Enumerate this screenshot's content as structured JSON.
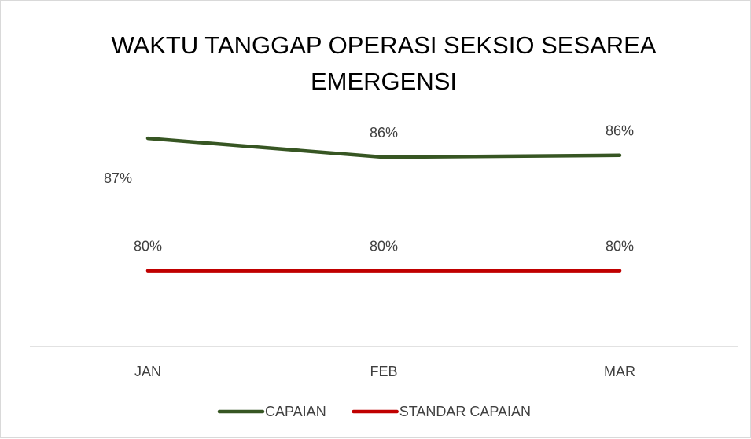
{
  "chart_data": {
    "type": "line",
    "title": "WAKTU TANGGAP OPERASI SEKSIO SESAREA EMERGENSI",
    "categories": [
      "JAN",
      "FEB",
      "MAR"
    ],
    "series": [
      {
        "name": "CAPAIAN",
        "color": "#375623",
        "values": [
          87,
          86,
          86.1
        ],
        "value_labels": [
          "87%",
          "86%",
          "86%"
        ]
      },
      {
        "name": "STANDAR CAPAIAN",
        "color": "#c00000",
        "values": [
          80,
          80,
          80
        ],
        "value_labels": [
          "80%",
          "80%",
          "80%"
        ]
      }
    ],
    "ylim": [
      76,
      88
    ]
  }
}
